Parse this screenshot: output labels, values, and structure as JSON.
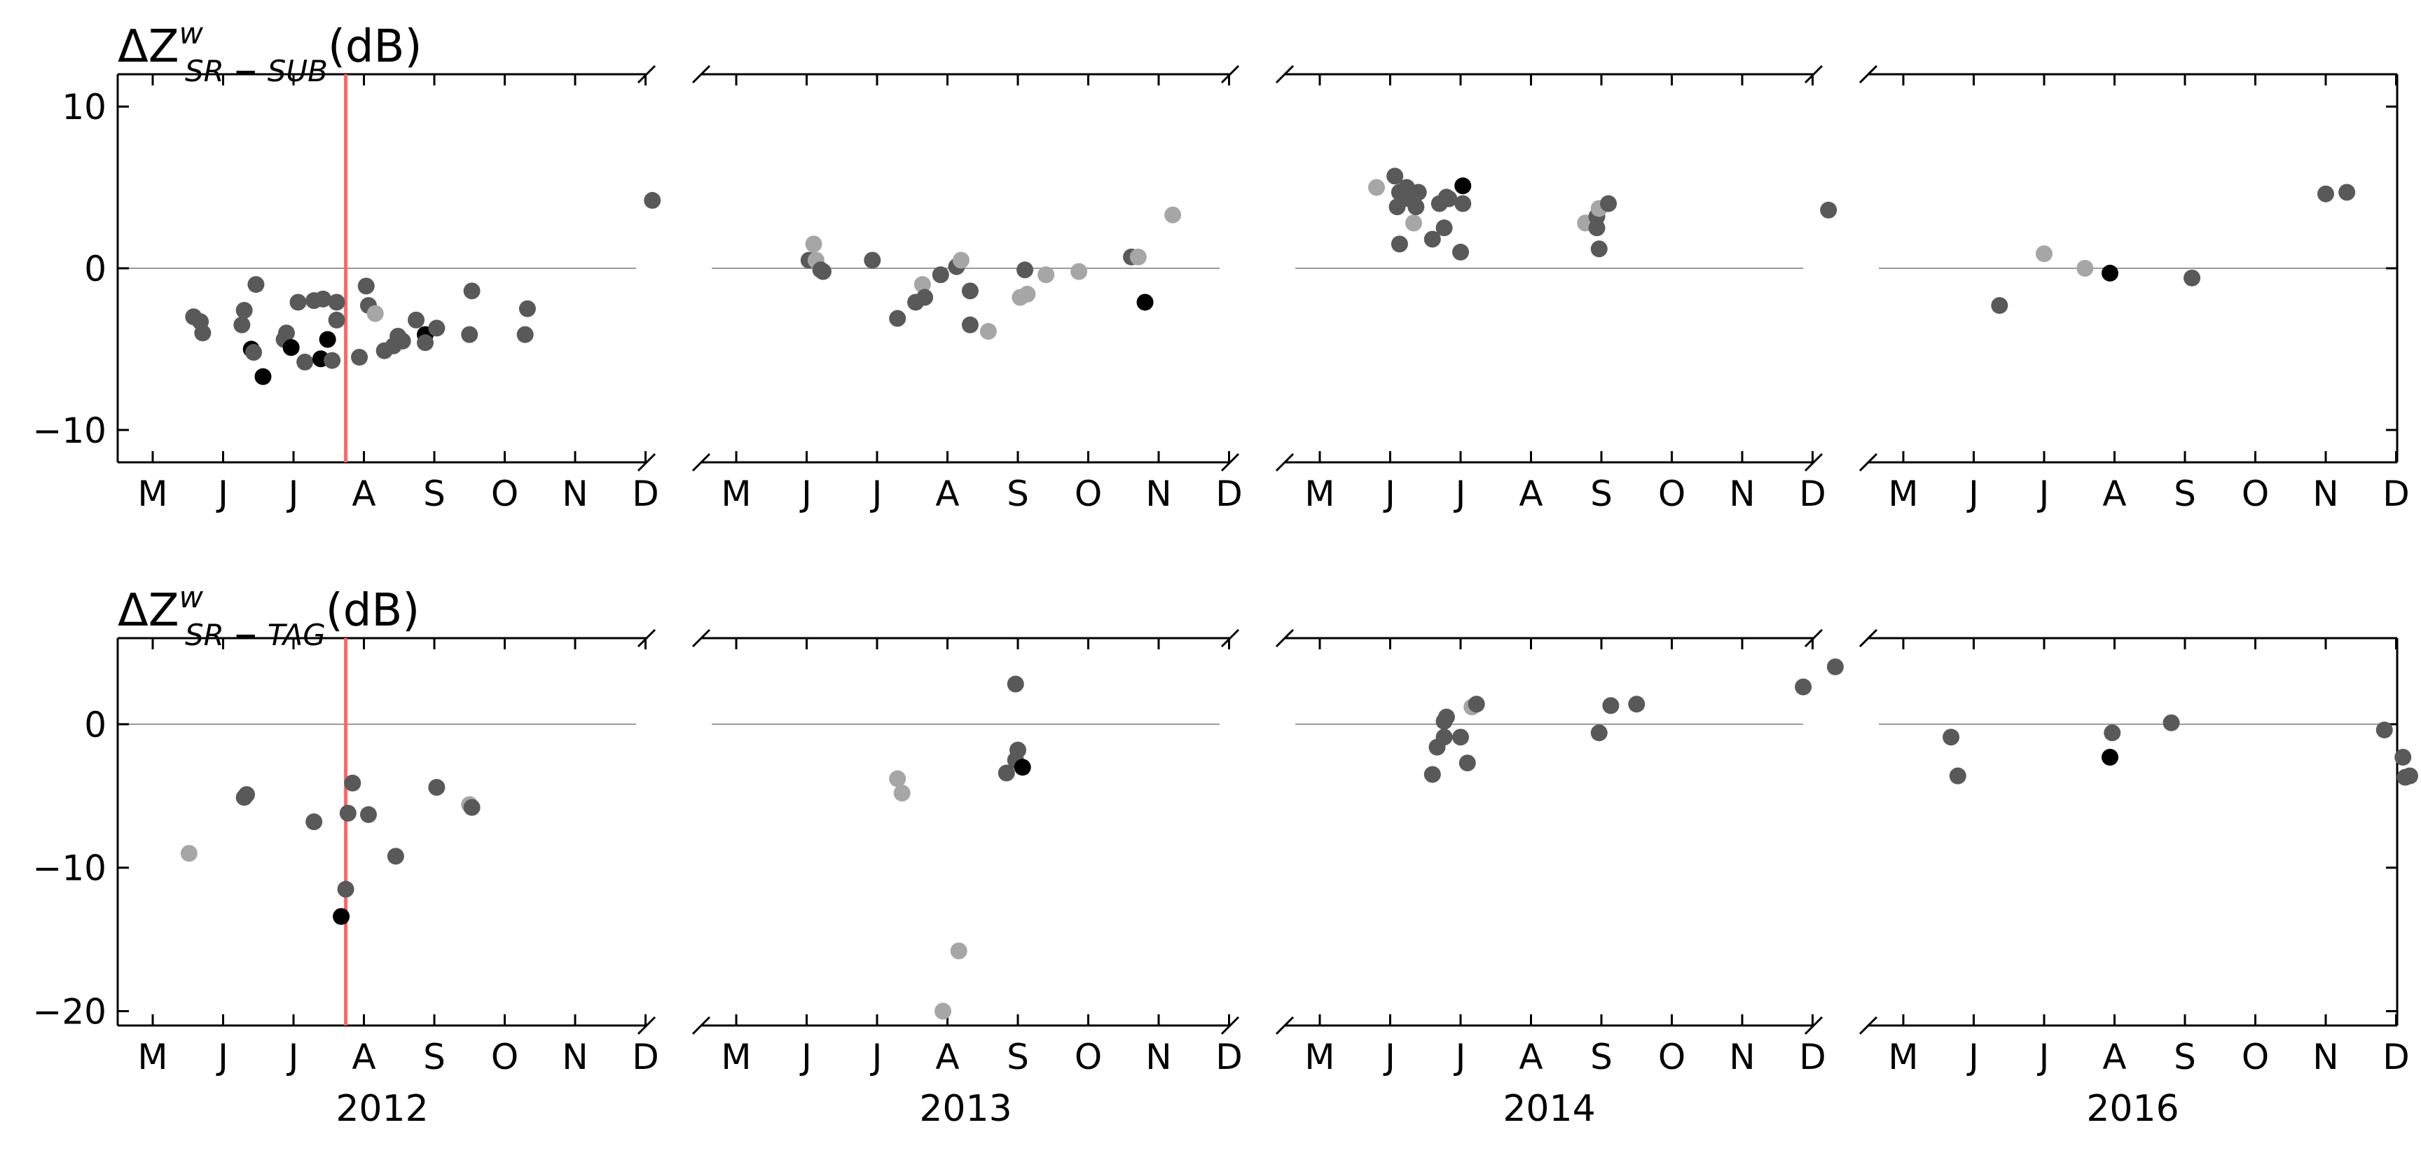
{
  "chart_data": {
    "type": "scatter",
    "x_tick_labels": [
      "M",
      "J",
      "J",
      "A",
      "S",
      "O",
      "N",
      "D"
    ],
    "years": [
      "2012",
      "2013",
      "2014",
      "2016"
    ],
    "colors": {
      "dark": "#595959",
      "light": "#a6a6a6",
      "black": "#000000",
      "marker_line": "#ff6666",
      "zero_line": "#999999"
    },
    "marker_line_date": {
      "year": "2012",
      "month": 7,
      "day": 24
    },
    "rows": [
      {
        "title_main": "ΔZ",
        "title_sup": "w",
        "title_sub": "SR − SUB",
        "title_unit": "(dB)",
        "ylim": [
          -12,
          12
        ],
        "yticks": [
          10,
          0,
          -10
        ],
        "ytick_labels": [
          "10",
          "0",
          "−10"
        ],
        "points": {
          "2012": [
            [
              "2012-05-19",
              -3.0,
              "dark"
            ],
            [
              "2012-05-22",
              -3.3,
              "dark"
            ],
            [
              "2012-05-23",
              -4.0,
              "dark"
            ],
            [
              "2012-06-10",
              -2.6,
              "dark"
            ],
            [
              "2012-06-09",
              -3.5,
              "dark"
            ],
            [
              "2012-06-15",
              -1.0,
              "dark"
            ],
            [
              "2012-06-13",
              -5.0,
              "black"
            ],
            [
              "2012-06-14",
              -5.2,
              "dark"
            ],
            [
              "2012-06-18",
              -6.7,
              "black"
            ],
            [
              "2012-06-28",
              -4.0,
              "dark"
            ],
            [
              "2012-06-27",
              -4.4,
              "dark"
            ],
            [
              "2012-06-30",
              -4.9,
              "black"
            ],
            [
              "2012-07-03",
              -2.1,
              "dark"
            ],
            [
              "2012-07-06",
              -5.8,
              "dark"
            ],
            [
              "2012-07-10",
              -2.0,
              "dark"
            ],
            [
              "2012-07-14",
              -1.9,
              "dark"
            ],
            [
              "2012-07-13",
              -5.6,
              "black"
            ],
            [
              "2012-07-16",
              -4.4,
              "black"
            ],
            [
              "2012-07-18",
              -5.7,
              "dark"
            ],
            [
              "2012-07-20",
              -2.1,
              "dark"
            ],
            [
              "2012-07-20",
              -3.2,
              "dark"
            ],
            [
              "2012-07-30",
              -5.5,
              "dark"
            ],
            [
              "2012-08-02",
              -1.1,
              "dark"
            ],
            [
              "2012-08-03",
              -2.3,
              "dark"
            ],
            [
              "2012-08-06",
              -2.8,
              "light"
            ],
            [
              "2012-08-10",
              -5.1,
              "dark"
            ],
            [
              "2012-08-14",
              -4.8,
              "dark"
            ],
            [
              "2012-08-16",
              -4.2,
              "dark"
            ],
            [
              "2012-08-18",
              -4.5,
              "dark"
            ],
            [
              "2012-08-24",
              -3.2,
              "dark"
            ],
            [
              "2012-08-28",
              -4.1,
              "black"
            ],
            [
              "2012-08-28",
              -4.6,
              "dark"
            ],
            [
              "2012-09-02",
              -3.7,
              "dark"
            ],
            [
              "2012-09-17",
              -1.4,
              "dark"
            ],
            [
              "2012-09-16",
              -4.1,
              "dark"
            ],
            [
              "2012-10-11",
              -2.5,
              "dark"
            ],
            [
              "2012-10-10",
              -4.1,
              "dark"
            ],
            [
              "2012-12-04",
              4.2,
              "dark"
            ]
          ],
          "2013": [
            [
              "2013-06-02",
              0.5,
              "dark"
            ],
            [
              "2013-06-04",
              1.5,
              "light"
            ],
            [
              "2013-06-05",
              0.5,
              "light"
            ],
            [
              "2013-06-07",
              -0.1,
              "dark"
            ],
            [
              "2013-06-08",
              -0.2,
              "dark"
            ],
            [
              "2013-06-29",
              0.5,
              "dark"
            ],
            [
              "2013-07-10",
              -3.1,
              "dark"
            ],
            [
              "2013-07-18",
              -2.1,
              "dark"
            ],
            [
              "2013-07-21",
              -1.0,
              "light"
            ],
            [
              "2013-07-22",
              -1.8,
              "dark"
            ],
            [
              "2013-07-29",
              -0.4,
              "dark"
            ],
            [
              "2013-08-05",
              0.1,
              "dark"
            ],
            [
              "2013-08-07",
              0.5,
              "light"
            ],
            [
              "2013-08-11",
              -1.4,
              "dark"
            ],
            [
              "2013-08-11",
              -3.5,
              "dark"
            ],
            [
              "2013-08-19",
              -3.9,
              "light"
            ],
            [
              "2013-09-02",
              -1.8,
              "light"
            ],
            [
              "2013-09-05",
              -1.6,
              "light"
            ],
            [
              "2013-09-04",
              -0.1,
              "dark"
            ],
            [
              "2013-09-13",
              -0.4,
              "light"
            ],
            [
              "2013-09-27",
              -0.2,
              "light"
            ],
            [
              "2013-10-20",
              0.7,
              "dark"
            ],
            [
              "2013-10-23",
              0.7,
              "light"
            ],
            [
              "2013-10-26",
              -2.1,
              "black"
            ],
            [
              "2013-11-07",
              3.3,
              "light"
            ]
          ],
          "2014": [
            [
              "2014-05-26",
              5.0,
              "light"
            ],
            [
              "2014-06-03",
              5.7,
              "dark"
            ],
            [
              "2014-06-04",
              3.8,
              "dark"
            ],
            [
              "2014-06-05",
              4.7,
              "dark"
            ],
            [
              "2014-06-05",
              1.5,
              "dark"
            ],
            [
              "2014-06-08",
              5.0,
              "dark"
            ],
            [
              "2014-06-09",
              4.3,
              "dark"
            ],
            [
              "2014-06-11",
              2.8,
              "light"
            ],
            [
              "2014-06-12",
              3.8,
              "dark"
            ],
            [
              "2014-06-13",
              4.7,
              "dark"
            ],
            [
              "2014-06-19",
              1.8,
              "dark"
            ],
            [
              "2014-06-22",
              4.0,
              "dark"
            ],
            [
              "2014-06-24",
              2.5,
              "dark"
            ],
            [
              "2014-06-26",
              4.3,
              "dark"
            ],
            [
              "2014-06-25",
              4.4,
              "dark"
            ],
            [
              "2014-07-01",
              1.0,
              "dark"
            ],
            [
              "2014-07-02",
              4.0,
              "dark"
            ],
            [
              "2014-07-02",
              5.1,
              "black"
            ],
            [
              "2014-08-25",
              2.8,
              "light"
            ],
            [
              "2014-08-30",
              2.5,
              "dark"
            ],
            [
              "2014-08-30",
              3.2,
              "dark"
            ],
            [
              "2014-08-31",
              3.7,
              "light"
            ],
            [
              "2014-08-31",
              1.2,
              "dark"
            ],
            [
              "2014-09-04",
              4.0,
              "dark"
            ],
            [
              "2014-12-08",
              3.6,
              "dark"
            ]
          ],
          "2016": [
            [
              "2016-06-12",
              -2.3,
              "dark"
            ],
            [
              "2016-07-01",
              0.9,
              "light"
            ],
            [
              "2016-07-19",
              0.0,
              "light"
            ],
            [
              "2016-07-30",
              -0.3,
              "black"
            ],
            [
              "2016-09-04",
              -0.6,
              "dark"
            ],
            [
              "2016-11-01",
              4.6,
              "dark"
            ],
            [
              "2016-11-10",
              4.7,
              "dark"
            ]
          ]
        }
      },
      {
        "title_main": "ΔZ",
        "title_sup": "w",
        "title_sub": "SR − TAG",
        "title_unit": "(dB)",
        "ylim": [
          -21,
          6
        ],
        "yticks": [
          0,
          -10,
          -20
        ],
        "ytick_labels": [
          "0",
          "−10",
          "−20"
        ],
        "points": {
          "2012": [
            [
              "2012-05-17",
              -9.0,
              "light"
            ],
            [
              "2012-06-10",
              -5.1,
              "dark"
            ],
            [
              "2012-06-11",
              -4.9,
              "dark"
            ],
            [
              "2012-07-10",
              -6.8,
              "dark"
            ],
            [
              "2012-07-22",
              -13.4,
              "black"
            ],
            [
              "2012-07-24",
              -11.5,
              "dark"
            ],
            [
              "2012-07-25",
              -6.2,
              "dark"
            ],
            [
              "2012-07-27",
              -4.1,
              "dark"
            ],
            [
              "2012-08-03",
              -6.3,
              "dark"
            ],
            [
              "2012-08-15",
              -9.2,
              "dark"
            ],
            [
              "2012-09-02",
              -4.4,
              "dark"
            ],
            [
              "2012-09-16",
              -5.6,
              "light"
            ],
            [
              "2012-09-17",
              -5.8,
              "dark"
            ]
          ],
          "2013": [
            [
              "2013-07-10",
              -3.8,
              "light"
            ],
            [
              "2013-07-12",
              -4.8,
              "light"
            ],
            [
              "2013-07-30",
              -20.0,
              "light"
            ],
            [
              "2013-08-06",
              -15.8,
              "light"
            ],
            [
              "2013-08-27",
              -3.4,
              "dark"
            ],
            [
              "2013-08-31",
              -2.5,
              "dark"
            ],
            [
              "2013-09-01",
              -1.8,
              "dark"
            ],
            [
              "2013-08-31",
              2.8,
              "dark"
            ],
            [
              "2013-09-03",
              -3.0,
              "black"
            ]
          ],
          "2014": [
            [
              "2014-06-19",
              -3.5,
              "dark"
            ],
            [
              "2014-06-21",
              -1.6,
              "dark"
            ],
            [
              "2014-06-24",
              -0.9,
              "dark"
            ],
            [
              "2014-06-24",
              0.2,
              "dark"
            ],
            [
              "2014-06-25",
              0.5,
              "dark"
            ],
            [
              "2014-07-01",
              -0.9,
              "dark"
            ],
            [
              "2014-07-04",
              -2.7,
              "dark"
            ],
            [
              "2014-07-06",
              1.2,
              "light"
            ],
            [
              "2014-07-08",
              1.4,
              "dark"
            ],
            [
              "2014-08-31",
              -0.6,
              "dark"
            ],
            [
              "2014-09-05",
              1.3,
              "dark"
            ],
            [
              "2014-09-16",
              1.4,
              "dark"
            ],
            [
              "2014-11-27",
              2.6,
              "dark"
            ],
            [
              "2014-12-11",
              4.0,
              "dark"
            ]
          ],
          "2016": [
            [
              "2016-05-22",
              -0.9,
              "dark"
            ],
            [
              "2016-05-25",
              -3.6,
              "dark"
            ],
            [
              "2016-07-30",
              -2.3,
              "black"
            ],
            [
              "2016-07-31",
              -0.6,
              "dark"
            ],
            [
              "2016-08-26",
              0.1,
              "dark"
            ],
            [
              "2016-11-26",
              -0.4,
              "dark"
            ],
            [
              "2016-12-04",
              -2.3,
              "dark"
            ],
            [
              "2016-12-05",
              -3.7,
              "dark"
            ],
            [
              "2016-12-07",
              -3.6,
              "dark"
            ]
          ]
        }
      }
    ]
  }
}
